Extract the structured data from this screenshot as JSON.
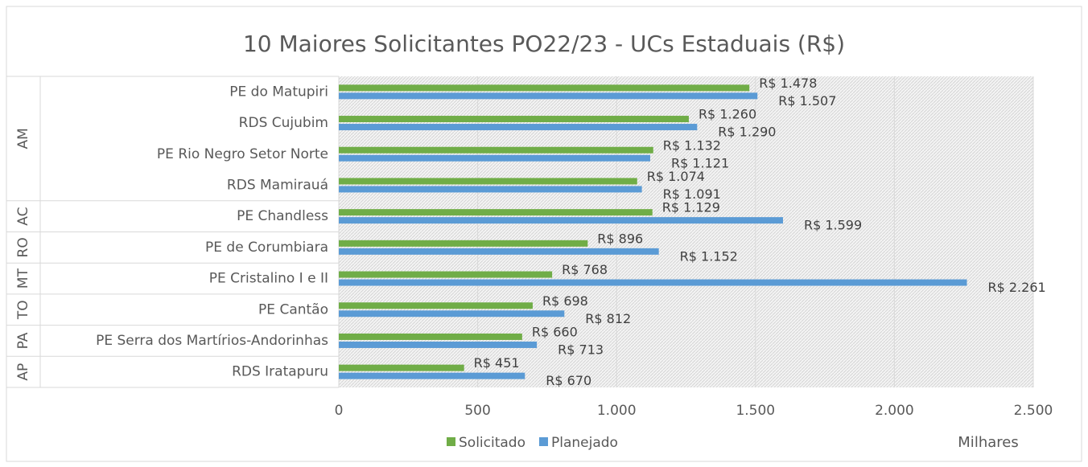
{
  "chart_data": {
    "type": "bar",
    "orientation": "horizontal",
    "title": "10 Maiores Solicitantes PO22/23 - UCs Estaduais (R$)",
    "categories": [
      "PE do Matupiri",
      "RDS Cujubim",
      "PE Rio Negro Setor Norte",
      "RDS Mamirauá",
      "PE Chandless",
      "PE de Corumbiara",
      "PE Cristalino I e II",
      "PE Cantão",
      "PE Serra dos Martírios-Andorinhas",
      "RDS Iratapuru"
    ],
    "category_groups": [
      "AM",
      "AM",
      "AM",
      "AM",
      "AC",
      "RO",
      "MT",
      "TO",
      "PA",
      "AP"
    ],
    "series": [
      {
        "name": "Solicitado",
        "color": "#70ad47",
        "values": [
          1478,
          1260,
          1132,
          1074,
          1129,
          896,
          768,
          698,
          660,
          451
        ],
        "value_labels": [
          "R$ 1.478",
          "R$ 1.260",
          "R$ 1.132",
          "R$ 1.074",
          "R$ 1.129",
          "R$ 896",
          "R$ 768",
          "R$ 698",
          "R$ 660",
          "R$ 451"
        ]
      },
      {
        "name": "Planejado",
        "color": "#5b9bd5",
        "values": [
          1507,
          1290,
          1121,
          1091,
          1599,
          1152,
          2261,
          812,
          713,
          670
        ],
        "value_labels": [
          "R$ 1.507",
          "R$ 1.290",
          "R$ 1.121",
          "R$ 1.091",
          "R$ 1.599",
          "R$ 1.152",
          "R$ 2.261",
          "R$ 812",
          "R$ 713",
          "R$ 670"
        ]
      }
    ],
    "xlim": [
      0,
      2500
    ],
    "xticks": [
      0,
      500,
      {
        "value": 1000,
        "label": "1.000"
      },
      {
        "value": 1500,
        "label": "1.500"
      },
      {
        "value": 2000,
        "label": "2.000"
      },
      {
        "value": 2500,
        "label": "2.500"
      }
    ],
    "x_label": "Milhares",
    "grid": true,
    "legend": "bottom"
  }
}
